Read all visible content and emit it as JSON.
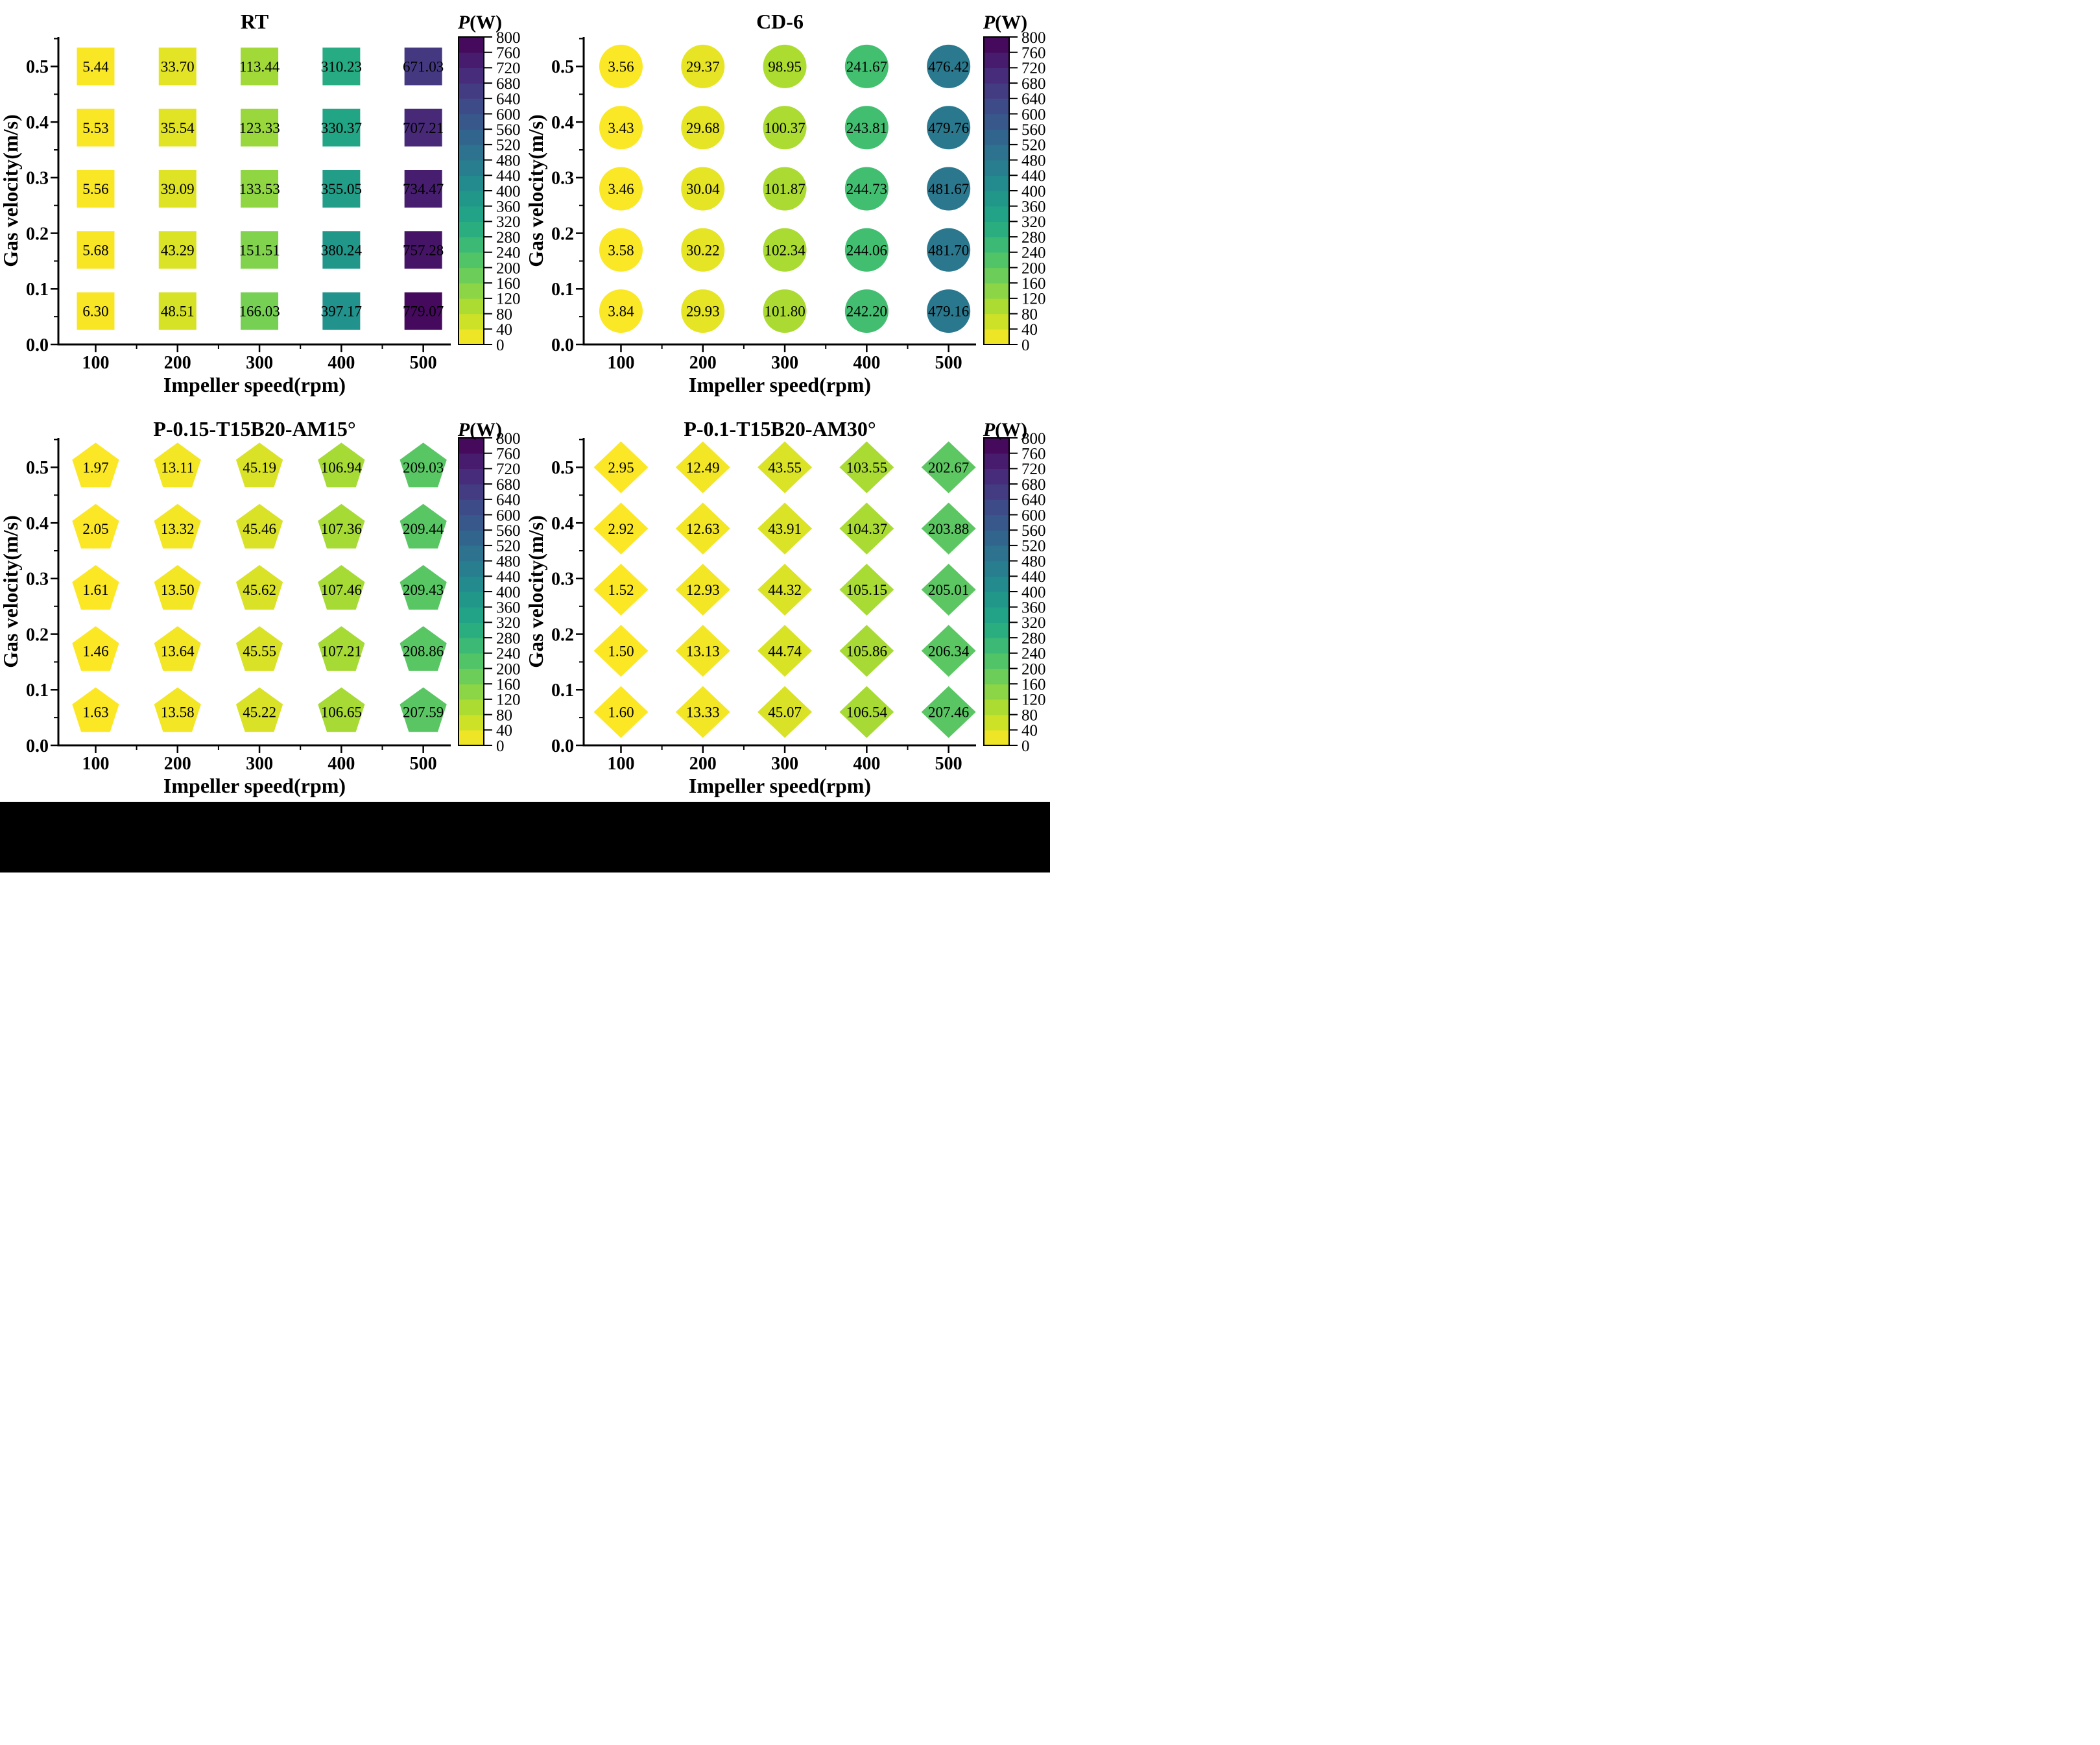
{
  "page": {
    "background": "#ffffff",
    "footer_bar_color": "#000000"
  },
  "shared_axes": {
    "x_label": "Impeller speed(rpm)",
    "y_label": "Gas velocity(m/s)",
    "x_ticks": [
      100,
      200,
      300,
      400,
      500
    ],
    "x_minor_ticks": [
      150,
      250,
      350,
      450
    ],
    "y_tick_labels": [
      "0.0",
      "0.1",
      "0.2",
      "0.3",
      "0.4",
      "0.5"
    ],
    "y_tick_values": [
      0,
      0.1,
      0.2,
      0.3,
      0.4,
      0.5
    ],
    "y_minor_ticks": [
      0.05,
      0.15,
      0.25,
      0.35,
      0.45,
      0.55
    ],
    "y_axis_max": 0.553,
    "grid": "off",
    "text_color": "#000000"
  },
  "colorbar": {
    "title": "P(W)",
    "min": 0,
    "max": 800,
    "band_step": 40,
    "tick_labels": [
      0,
      40,
      80,
      120,
      160,
      200,
      240,
      280,
      320,
      360,
      400,
      440,
      480,
      520,
      560,
      600,
      640,
      680,
      720,
      760,
      800
    ],
    "colormap": "viridis-reversed",
    "viridis_stops": [
      [
        0.0,
        "#440154"
      ],
      [
        0.1,
        "#482475"
      ],
      [
        0.2,
        "#414487"
      ],
      [
        0.3,
        "#355f8d"
      ],
      [
        0.4,
        "#2a788e"
      ],
      [
        0.5,
        "#21918c"
      ],
      [
        0.6,
        "#22a884"
      ],
      [
        0.7,
        "#44bf70"
      ],
      [
        0.8,
        "#7ad151"
      ],
      [
        0.9,
        "#bddf26"
      ],
      [
        1.0,
        "#fde725"
      ]
    ]
  },
  "chart_data": [
    {
      "type": "scatter",
      "marker": "square",
      "title": "RT",
      "x": [
        100,
        200,
        300,
        400,
        500
      ],
      "y_positions": [
        0.5,
        0.39,
        0.28,
        0.17,
        0.06
      ],
      "y_row_names": [
        "0.5",
        "0.4",
        "0.3",
        "0.2",
        "0.1"
      ],
      "values": [
        [
          "5.44",
          "33.70",
          "113.44",
          "310.23",
          "671.03"
        ],
        [
          "5.53",
          "35.54",
          "123.33",
          "330.37",
          "707.21"
        ],
        [
          "5.56",
          "39.09",
          "133.53",
          "355.05",
          "734.47"
        ],
        [
          "5.68",
          "43.29",
          "151.51",
          "380.24",
          "757.28"
        ],
        [
          "6.30",
          "48.51",
          "166.03",
          "397.17",
          "779.07"
        ]
      ]
    },
    {
      "type": "scatter",
      "marker": "circle",
      "title": "CD-6",
      "x": [
        100,
        200,
        300,
        400,
        500
      ],
      "y_positions": [
        0.5,
        0.39,
        0.28,
        0.17,
        0.06
      ],
      "y_row_names": [
        "0.5",
        "0.4",
        "0.3",
        "0.2",
        "0.1"
      ],
      "values": [
        [
          "3.56",
          "29.37",
          "98.95",
          "241.67",
          "476.42"
        ],
        [
          "3.43",
          "29.68",
          "100.37",
          "243.81",
          "479.76"
        ],
        [
          "3.46",
          "30.04",
          "101.87",
          "244.73",
          "481.67"
        ],
        [
          "3.58",
          "30.22",
          "102.34",
          "244.06",
          "481.70"
        ],
        [
          "3.84",
          "29.93",
          "101.80",
          "242.20",
          "479.16"
        ]
      ]
    },
    {
      "type": "scatter",
      "marker": "pentagon",
      "title": "P-0.15-T15B20-AM15°",
      "x": [
        100,
        200,
        300,
        400,
        500
      ],
      "y_positions": [
        0.5,
        0.39,
        0.28,
        0.17,
        0.06
      ],
      "y_row_names": [
        "0.5",
        "0.4",
        "0.3",
        "0.2",
        "0.1"
      ],
      "values": [
        [
          "1.97",
          "13.11",
          "45.19",
          "106.94",
          "209.03"
        ],
        [
          "2.05",
          "13.32",
          "45.46",
          "107.36",
          "209.44"
        ],
        [
          "1.61",
          "13.50",
          "45.62",
          "107.46",
          "209.43"
        ],
        [
          "1.46",
          "13.64",
          "45.55",
          "107.21",
          "208.86"
        ],
        [
          "1.63",
          "13.58",
          "45.22",
          "106.65",
          "207.59"
        ]
      ]
    },
    {
      "type": "scatter",
      "marker": "diamond",
      "title": "P-0.1-T15B20-AM30°",
      "x": [
        100,
        200,
        300,
        400,
        500
      ],
      "y_positions": [
        0.5,
        0.39,
        0.28,
        0.17,
        0.06
      ],
      "y_row_names": [
        "0.5",
        "0.4",
        "0.3",
        "0.2",
        "0.1"
      ],
      "values": [
        [
          "2.95",
          "12.49",
          "43.55",
          "103.55",
          "202.67"
        ],
        [
          "2.92",
          "12.63",
          "43.91",
          "104.37",
          "203.88"
        ],
        [
          "1.52",
          "12.93",
          "44.32",
          "105.15",
          "205.01"
        ],
        [
          "1.50",
          "13.13",
          "44.74",
          "105.86",
          "206.34"
        ],
        [
          "1.60",
          "13.33",
          "45.07",
          "106.54",
          "207.46"
        ]
      ]
    }
  ]
}
